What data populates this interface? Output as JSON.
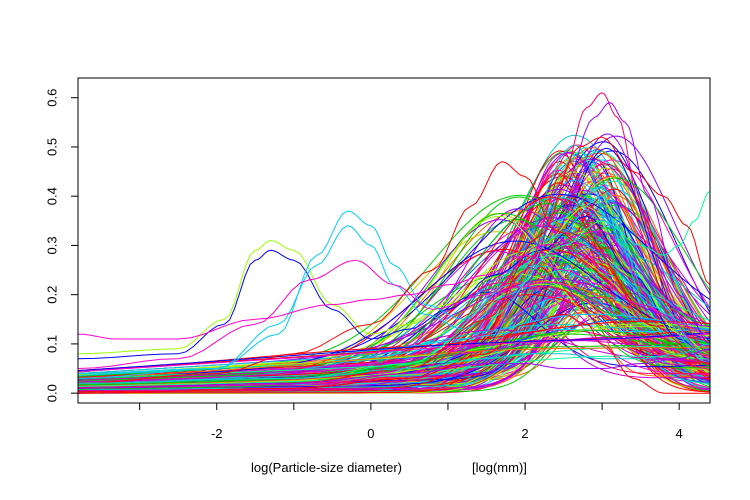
{
  "chart_data": {
    "type": "line",
    "title": "",
    "xlabel": "log(Particle-size diameter)",
    "xunit": "[log(mm)]",
    "ylabel": "",
    "xlim": [
      -3.8,
      4.4
    ],
    "ylim": [
      -0.02,
      0.64
    ],
    "x_ticks": [
      -3,
      -2,
      -1,
      0,
      1,
      2,
      3,
      4
    ],
    "x_tick_labels": [
      "-2",
      "0",
      "2",
      "4"
    ],
    "x_tick_label_values": [
      -2,
      0,
      2,
      4
    ],
    "y_ticks": [
      0.0,
      0.1,
      0.2,
      0.3,
      0.4,
      0.5,
      0.6
    ],
    "y_tick_labels": [
      "0.0",
      "0.1",
      "0.2",
      "0.3",
      "0.4",
      "0.5",
      "0.6"
    ],
    "grid": false,
    "legend": "none",
    "series_count_approx": 300,
    "palette": [
      "#ff0000",
      "#ff6600",
      "#cccc00",
      "#99ff00",
      "#00cc00",
      "#00ff99",
      "#00cccc",
      "#00ccff",
      "#0066ff",
      "#0000ff",
      "#9900ff",
      "#cc00cc",
      "#ff00cc",
      "#ff0066"
    ],
    "series_groups": [
      {
        "kind": "main-peak",
        "count": 220,
        "peak_x_range": [
          2.4,
          3.2
        ],
        "peak_y_range": [
          0.15,
          0.5
        ],
        "peak_width_range": [
          0.5,
          0.85
        ],
        "baseline_range": [
          0.0,
          0.08
        ]
      },
      {
        "kind": "broad-mid",
        "count": 50,
        "peak_x_range": [
          1.5,
          2.6
        ],
        "peak_y_range": [
          0.18,
          0.38
        ],
        "peak_width_range": [
          0.7,
          1.2
        ],
        "baseline_range": [
          0.02,
          0.1
        ]
      },
      {
        "kind": "flat-low",
        "count": 20,
        "peak_x_range": [
          1.5,
          3.5
        ],
        "peak_y_range": [
          0.05,
          0.12
        ],
        "peak_width_range": [
          1.0,
          2.0
        ],
        "baseline_range": [
          0.03,
          0.12
        ]
      }
    ],
    "notable_series": [
      {
        "x": [
          -3.8,
          -2.5,
          -1.9,
          -1.5,
          -1.3,
          -1.0,
          -0.5,
          0.0,
          0.5,
          1.0,
          1.6,
          2.2,
          2.8,
          3.4,
          4.0,
          4.4
        ],
        "y": [
          0.08,
          0.09,
          0.15,
          0.29,
          0.31,
          0.29,
          0.18,
          0.12,
          0.14,
          0.18,
          0.25,
          0.3,
          0.38,
          0.25,
          0.12,
          0.08
        ]
      },
      {
        "x": [
          -3.8,
          -2.5,
          -1.9,
          -1.5,
          -1.3,
          -1.0,
          -0.5,
          0.0,
          0.5,
          1.0,
          1.6,
          2.2,
          2.8,
          3.4,
          4.0,
          4.4
        ],
        "y": [
          0.07,
          0.08,
          0.14,
          0.27,
          0.29,
          0.27,
          0.17,
          0.11,
          0.13,
          0.17,
          0.24,
          0.29,
          0.36,
          0.24,
          0.11,
          0.07
        ]
      },
      {
        "x": [
          -3.8,
          -2.0,
          -1.2,
          -0.7,
          -0.3,
          0.0,
          0.3,
          0.7,
          1.2,
          1.8,
          2.4,
          3.0,
          3.6,
          4.4
        ],
        "y": [
          0.04,
          0.05,
          0.12,
          0.28,
          0.37,
          0.34,
          0.26,
          0.18,
          0.15,
          0.22,
          0.35,
          0.42,
          0.2,
          0.07
        ]
      },
      {
        "x": [
          -3.8,
          -2.0,
          -1.2,
          -0.7,
          -0.3,
          0.0,
          0.3,
          0.7,
          1.2,
          1.8,
          2.4,
          3.0,
          3.6,
          4.4
        ],
        "y": [
          0.03,
          0.05,
          0.14,
          0.26,
          0.34,
          0.3,
          0.22,
          0.16,
          0.13,
          0.2,
          0.32,
          0.4,
          0.18,
          0.06
        ]
      },
      {
        "x": [
          -3.8,
          -2.5,
          -1.5,
          -0.8,
          -0.2,
          0.3,
          0.8,
          1.5,
          2.2,
          3.0,
          3.8,
          4.4
        ],
        "y": [
          0.05,
          0.07,
          0.14,
          0.23,
          0.27,
          0.22,
          0.17,
          0.2,
          0.3,
          0.33,
          0.16,
          0.07
        ]
      },
      {
        "x": [
          -3.8,
          -3.3,
          -2.5,
          -1.5,
          -0.5,
          0.0,
          0.5,
          1.0,
          1.5,
          2.0,
          2.5,
          3.0,
          3.5,
          4.0,
          4.4
        ],
        "y": [
          0.12,
          0.11,
          0.11,
          0.15,
          0.18,
          0.19,
          0.2,
          0.22,
          0.24,
          0.28,
          0.25,
          0.22,
          0.18,
          0.14,
          0.12
        ]
      },
      {
        "x": [
          -3.8,
          -2.0,
          -1.0,
          0.0,
          0.8,
          1.3,
          1.7,
          2.0,
          2.4,
          3.0,
          3.6,
          4.4
        ],
        "y": [
          0.02,
          0.04,
          0.08,
          0.14,
          0.25,
          0.38,
          0.47,
          0.44,
          0.33,
          0.26,
          0.14,
          0.06
        ]
      },
      {
        "x": [
          -3.8,
          -1.0,
          0.5,
          1.5,
          2.0,
          2.5,
          2.8,
          3.0,
          3.2,
          3.5,
          3.9,
          4.4
        ],
        "y": [
          0.0,
          0.01,
          0.04,
          0.12,
          0.25,
          0.45,
          0.58,
          0.61,
          0.56,
          0.38,
          0.17,
          0.08
        ]
      },
      {
        "x": [
          -3.8,
          -1.0,
          0.5,
          1.5,
          2.0,
          2.5,
          2.9,
          3.1,
          3.3,
          3.6,
          4.0,
          4.4
        ],
        "y": [
          0.0,
          0.01,
          0.03,
          0.1,
          0.22,
          0.42,
          0.56,
          0.59,
          0.55,
          0.4,
          0.2,
          0.1
        ]
      },
      {
        "x": [
          -3.8,
          -1.0,
          0.5,
          1.5,
          2.0,
          2.5,
          2.8,
          3.0,
          3.4,
          3.8,
          4.1,
          4.4
        ],
        "y": [
          0.0,
          0.01,
          0.03,
          0.08,
          0.14,
          0.16,
          0.14,
          0.1,
          0.03,
          0.0,
          0.0,
          0.0
        ]
      },
      {
        "x": [
          -3.8,
          -1.0,
          0.5,
          1.5,
          2.5,
          3.0,
          3.5,
          3.8,
          4.0,
          4.2,
          4.4
        ],
        "y": [
          0.02,
          0.03,
          0.06,
          0.15,
          0.3,
          0.35,
          0.3,
          0.28,
          0.3,
          0.35,
          0.41
        ]
      },
      {
        "x": [
          -3.8,
          -1.0,
          0.5,
          1.5,
          2.2,
          2.7,
          3.0,
          3.4,
          3.8,
          4.1,
          4.4
        ],
        "y": [
          0.01,
          0.02,
          0.05,
          0.15,
          0.32,
          0.5,
          0.52,
          0.45,
          0.4,
          0.34,
          0.22
        ]
      },
      {
        "x": [
          -3.8,
          -1.0,
          0.5,
          1.5,
          2.0,
          2.5,
          3.0,
          3.5,
          4.0,
          4.4
        ],
        "y": [
          0.02,
          0.03,
          0.05,
          0.07,
          0.08,
          0.08,
          0.07,
          0.07,
          0.08,
          0.1
        ]
      },
      {
        "x": [
          -3.8,
          -1.0,
          0.5,
          1.5,
          2.0,
          2.5,
          3.0,
          3.5,
          4.0,
          4.4
        ],
        "y": [
          0.01,
          0.02,
          0.04,
          0.06,
          0.06,
          0.05,
          0.05,
          0.06,
          0.07,
          0.09
        ]
      }
    ]
  }
}
